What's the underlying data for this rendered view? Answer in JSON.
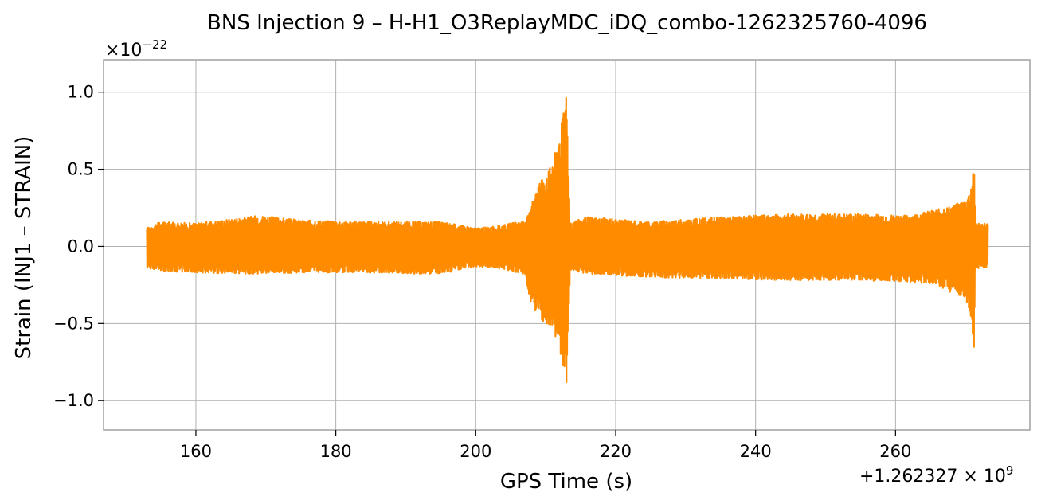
{
  "chart_data": {
    "type": "line",
    "title": "BNS Injection 9 – H-H1_O3ReplayMDC_iDQ_combo-1262325760-4096",
    "xlabel": "GPS Time (s)",
    "ylabel": "Strain (INJ1 – STRAIN)",
    "x_offset_label": "+1.262327 × 10",
    "x_offset_exponent": "9",
    "y_scale_label": "×10",
    "y_scale_exponent": "−22",
    "xlim": [
      146.8,
      279.2
    ],
    "ylim": [
      -1.19,
      1.21
    ],
    "x_ticks": [
      160,
      180,
      200,
      220,
      240,
      260
    ],
    "x_tick_labels": [
      "160",
      "180",
      "200",
      "220",
      "240",
      "260"
    ],
    "y_ticks": [
      1.0,
      0.5,
      0.0,
      -0.5,
      -1.0
    ],
    "y_tick_labels": [
      "1.0",
      "0.5",
      "0.0",
      "−0.5",
      "−1.0"
    ],
    "grid": true,
    "series": [
      {
        "color": "#ff8c00",
        "x_start": 153.0,
        "x_end": 273.2,
        "envelope": {
          "x": [
            153.0,
            155.0,
            160.0,
            169.0,
            175.0,
            185.0,
            195.0,
            200.0,
            203.0,
            205.0,
            207.0,
            207.8,
            208.5,
            209.5,
            210.5,
            211.5,
            212.3,
            212.8,
            213.0,
            213.2,
            213.5,
            216.0,
            225.0,
            235.0,
            245.0,
            255.0,
            262.0,
            266.0,
            268.0,
            270.0,
            270.6,
            271.0,
            271.2,
            271.4,
            272.0,
            273.2
          ],
          "upper": [
            0.12,
            0.16,
            0.15,
            0.2,
            0.17,
            0.16,
            0.16,
            0.12,
            0.13,
            0.15,
            0.17,
            0.23,
            0.38,
            0.45,
            0.5,
            0.63,
            0.82,
            0.96,
            1.1,
            0.6,
            0.16,
            0.19,
            0.16,
            0.19,
            0.21,
            0.21,
            0.2,
            0.24,
            0.26,
            0.3,
            0.35,
            0.45,
            0.59,
            0.16,
            0.15,
            0.15
          ],
          "lower": [
            -0.14,
            -0.16,
            -0.17,
            -0.18,
            -0.17,
            -0.17,
            -0.18,
            -0.13,
            -0.14,
            -0.16,
            -0.18,
            -0.35,
            -0.42,
            -0.48,
            -0.54,
            -0.6,
            -0.75,
            -0.9,
            -1.08,
            -0.55,
            -0.15,
            -0.18,
            -0.2,
            -0.21,
            -0.22,
            -0.22,
            -0.23,
            -0.25,
            -0.3,
            -0.35,
            -0.42,
            -0.55,
            -0.73,
            -0.15,
            -0.14,
            -0.14
          ]
        }
      }
    ]
  }
}
